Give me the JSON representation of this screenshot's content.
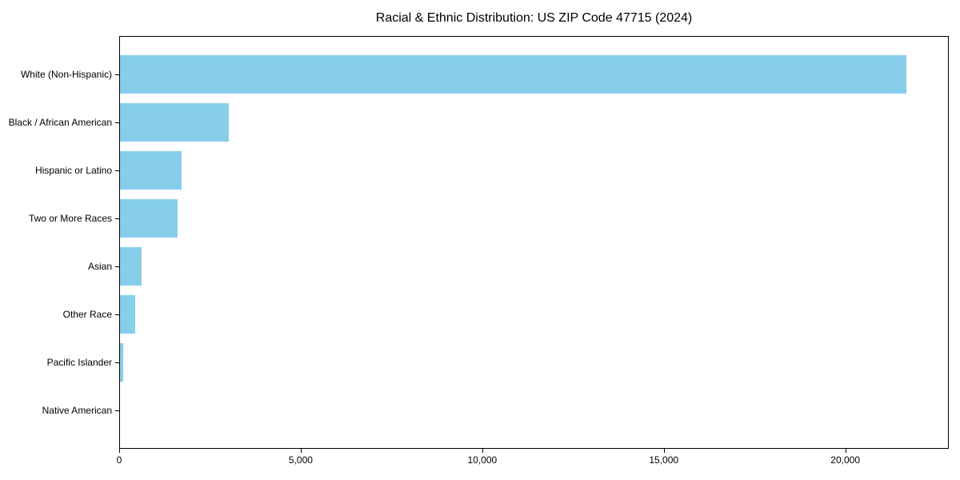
{
  "title": "Racial & Ethnic Distribution: US ZIP Code 47715 (2024)",
  "colors": {
    "bar": "#87CEEB",
    "axis": "#000000",
    "background": "#FFFFFF",
    "text": "#000000"
  },
  "chart_data": {
    "type": "bar",
    "orientation": "horizontal",
    "title": "Racial & Ethnic Distribution: US ZIP Code 47715 (2024)",
    "categories": [
      "White (Non-Hispanic)",
      "Black / African American",
      "Hispanic or Latino",
      "Two or More Races",
      "Asian",
      "Other Race",
      "Pacific Islander",
      "Native American"
    ],
    "values": [
      21700,
      3000,
      1700,
      1600,
      600,
      430,
      95,
      0
    ],
    "xlabel": "",
    "ylabel": "",
    "xlim": [
      0,
      22850
    ],
    "x_ticks": [
      0,
      5000,
      10000,
      15000,
      20000
    ],
    "x_tick_labels": [
      "0",
      "5,000",
      "10,000",
      "15,000",
      "20,000"
    ],
    "bar_color": "#87CEEB",
    "grid": false,
    "legend": null
  }
}
